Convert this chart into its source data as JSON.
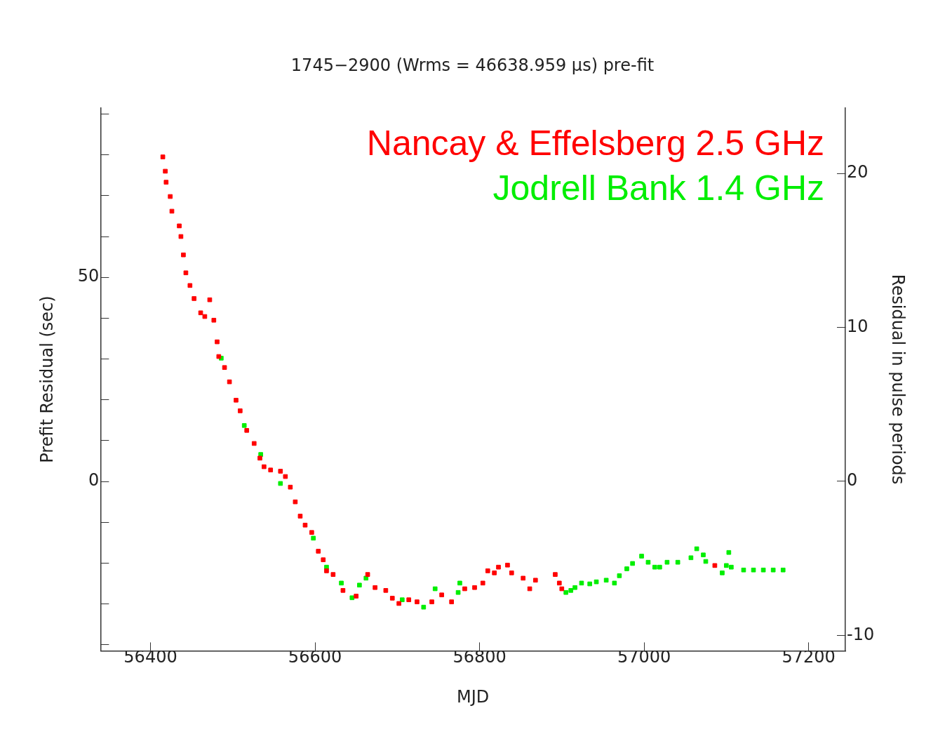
{
  "chart_data": {
    "type": "scatter",
    "title": "1745−2900 (Wrms = 46638.959 μs) pre-fit",
    "xlabel": "MJD",
    "ylabel": "Prefit Residual (sec)",
    "y2label": "Residual in pulse periods",
    "xlim": [
      56339.3,
      57244.7
    ],
    "xticks": [
      56400,
      56600,
      56800,
      57000,
      57200
    ],
    "ylim": [
      -41.5,
      91.5
    ],
    "yticks": [
      {
        "value": -40,
        "label": null
      },
      {
        "value": -30,
        "label": null
      },
      {
        "value": -20,
        "label": null
      },
      {
        "value": -10,
        "label": null
      },
      0,
      {
        "value": 10,
        "label": null
      },
      {
        "value": 20,
        "label": null
      },
      {
        "value": 30,
        "label": null
      },
      {
        "value": 40,
        "label": null
      },
      50,
      {
        "value": 60,
        "label": null
      },
      {
        "value": 70,
        "label": null
      },
      {
        "value": 80,
        "label": null
      },
      {
        "value": 90,
        "label": null
      }
    ],
    "y2lim": [
      -11.0,
      24.25
    ],
    "y2ticks": [
      -10,
      0,
      10,
      20
    ],
    "marker": "square",
    "legend": "top right",
    "grid": false,
    "series": [
      {
        "name": "Nancay & Effelsberg 2.5 GHz",
        "color": "#ff0000",
        "x": [
          56415,
          56418,
          56419,
          56424,
          56426,
          56435,
          56437,
          56440,
          56443,
          56448,
          56453,
          56461,
          56466,
          56472,
          56477,
          56481,
          56483,
          56490,
          56496,
          56504,
          56509,
          56517,
          56526,
          56533,
          56538,
          56546,
          56558,
          56564,
          56570,
          56576,
          56582,
          56588,
          56596,
          56604,
          56610,
          56614,
          56622,
          56634,
          56650,
          56664,
          56673,
          56686,
          56694,
          56702,
          56714,
          56724,
          56742,
          56754,
          56766,
          56782,
          56794,
          56804,
          56810,
          56818,
          56823,
          56834,
          56839,
          56853,
          56861,
          56868,
          56892,
          56897,
          56900,
          57086
        ],
        "values": [
          79.5,
          76,
          73.3,
          69.8,
          66.2,
          62.6,
          60,
          55.5,
          51.1,
          48,
          44.8,
          41.3,
          40.4,
          44.5,
          39.5,
          34.2,
          30.6,
          27.9,
          24.4,
          19.9,
          17.3,
          12.5,
          9.3,
          5.7,
          3.6,
          2.8,
          2.5,
          1.2,
          -1.4,
          -5,
          -8.5,
          -10.7,
          -12.5,
          -17.1,
          -19.2,
          -21.9,
          -22.8,
          -26.7,
          -28.1,
          -22.8,
          -26,
          -26.7,
          -28.6,
          -29.9,
          -29,
          -29.5,
          -29.5,
          -27.8,
          -29.5,
          -26.3,
          -26,
          -24.9,
          -21.9,
          -22.4,
          -21,
          -20.5,
          -22.4,
          -23.7,
          -26.3,
          -24.2,
          -22.8,
          -24.9,
          -26.3,
          -20.6
        ]
      },
      {
        "name": "Jodrell Bank 1.4 GHz",
        "color": "#00ee00",
        "x": [
          56486,
          56514,
          56534,
          56558,
          56598,
          56614,
          56632,
          56645,
          56654,
          56662,
          56706,
          56732,
          56746,
          56774,
          56776,
          56905,
          56911,
          56916,
          56924,
          56934,
          56942,
          56954,
          56964,
          56970,
          56979,
          56986,
          56997,
          57005,
          57013,
          57019,
          57028,
          57041,
          57057,
          57064,
          57072,
          57075,
          57095,
          57100,
          57103,
          57106,
          57121,
          57133,
          57145,
          57157,
          57169
        ],
        "values": [
          30.2,
          13.7,
          6.6,
          -0.5,
          -13.9,
          -21,
          -24.9,
          -28.5,
          -25.4,
          -23.7,
          -29,
          -30.8,
          -26.3,
          -27.2,
          -24.9,
          -27.2,
          -26.7,
          -26,
          -24.9,
          -25.1,
          -24.6,
          -24.2,
          -24.9,
          -23.1,
          -21.4,
          -20.1,
          -18.3,
          -19.8,
          -21,
          -21,
          -19.8,
          -19.8,
          -18.7,
          -16.5,
          -18,
          -19.6,
          -22.4,
          -20.6,
          -17.4,
          -21,
          -21.7,
          -21.7,
          -21.7,
          -21.7,
          -21.7
        ]
      }
    ]
  }
}
